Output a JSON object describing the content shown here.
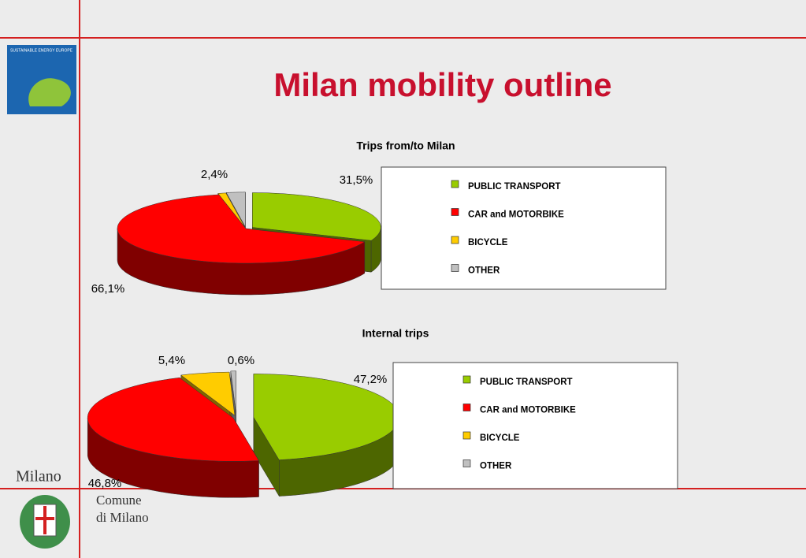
{
  "slide": {
    "title": "Milan mobility outline",
    "logo_text": "SUSTAINABLE ENERGY EUROPE",
    "city": "Milano",
    "municipality": [
      "Comune",
      "di Milano"
    ]
  },
  "chart_data": [
    {
      "type": "pie",
      "title": "Trips from/to Milan",
      "categories": [
        "PUBLIC TRANSPORT",
        "CAR and MOTORBIKE",
        "BICYCLE",
        "OTHER"
      ],
      "values": [
        31.5,
        66.1,
        1.0,
        2.4
      ],
      "value_labels": [
        "31,5%",
        "66,1%",
        null,
        "2,4%"
      ],
      "colors": [
        "#99cc00",
        "#ff0000",
        "#ffcc00",
        "#c0c0c0"
      ]
    },
    {
      "type": "pie",
      "title": "Internal trips",
      "categories": [
        "PUBLIC TRANSPORT",
        "CAR and MOTORBIKE",
        "BICYCLE",
        "OTHER"
      ],
      "values": [
        47.2,
        46.8,
        5.4,
        0.6
      ],
      "value_labels": [
        "47,2%",
        "46,8%",
        "5,4%",
        "0,6%"
      ],
      "colors": [
        "#99cc00",
        "#ff0000",
        "#ffcc00",
        "#c0c0c0"
      ]
    }
  ]
}
